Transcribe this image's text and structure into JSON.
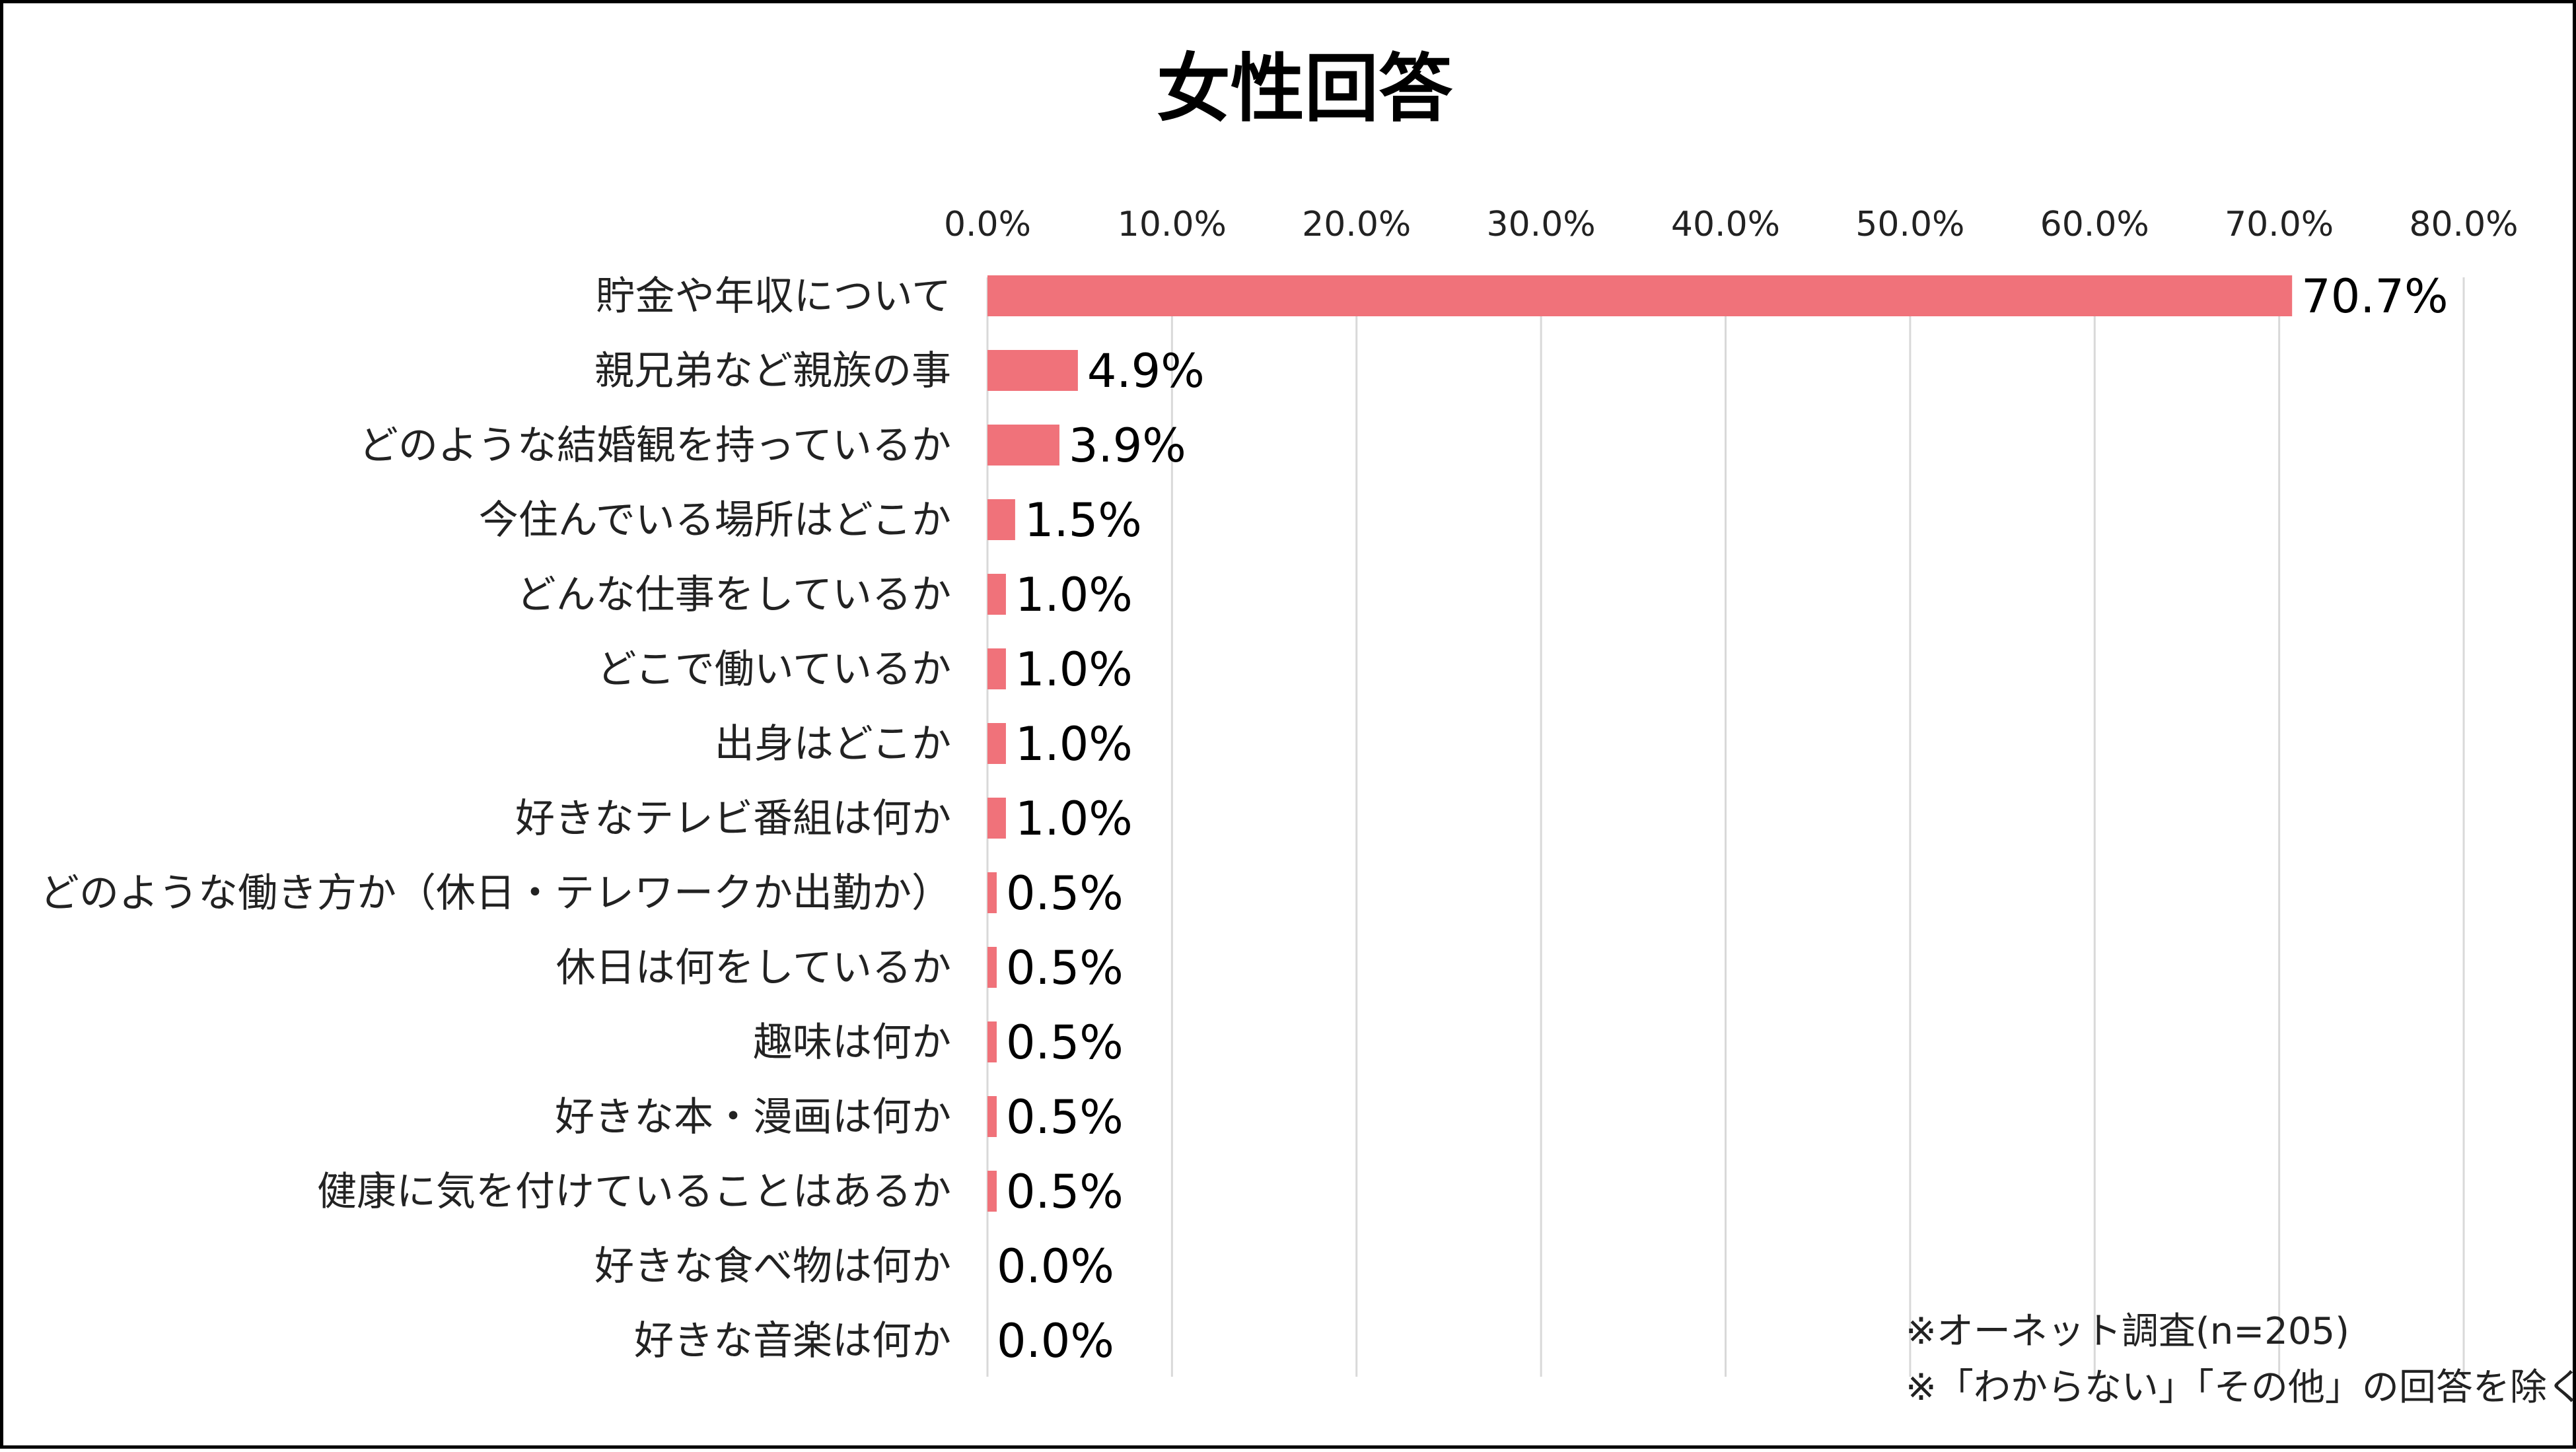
{
  "chart_data": {
    "type": "bar",
    "orientation": "horizontal",
    "title": "女性回答",
    "xlim": [
      0,
      80
    ],
    "x_ticks": [
      "0.0%",
      "10.0%",
      "20.0%",
      "30.0%",
      "40.0%",
      "50.0%",
      "60.0%",
      "70.0%",
      "80.0%"
    ],
    "grid": "vertical",
    "bar_color": "#f0727a",
    "categories": [
      "貯金や年収について",
      "親兄弟など親族の事",
      "どのような結婚観を持っているか",
      "今住んでいる場所はどこか",
      "どんな仕事をしているか",
      "どこで働いているか",
      "出身はどこか",
      "好きなテレビ番組は何か",
      "どのような働き方か（休日・テレワークか出勤か）",
      "休日は何をしているか",
      "趣味は何か",
      "好きな本・漫画は何か",
      "健康に気を付けていることはあるか",
      "好きな食べ物は何か",
      "好きな音楽は何か"
    ],
    "values": [
      70.7,
      4.9,
      3.9,
      1.5,
      1.0,
      1.0,
      1.0,
      1.0,
      0.5,
      0.5,
      0.5,
      0.5,
      0.5,
      0.0,
      0.0
    ],
    "value_labels": [
      "70.7%",
      "4.9%",
      "3.9%",
      "1.5%",
      "1.0%",
      "1.0%",
      "1.0%",
      "1.0%",
      "0.5%",
      "0.5%",
      "0.5%",
      "0.5%",
      "0.5%",
      "0.0%",
      "0.0%"
    ],
    "notes": [
      "※オーネット調査(n=205)",
      "※「わからない」「その他」の回答を除く"
    ]
  }
}
